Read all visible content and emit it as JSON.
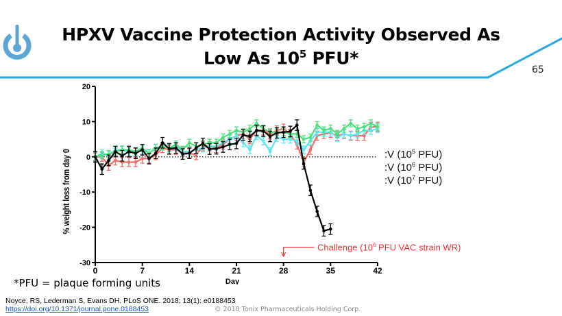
{
  "slide": {
    "title_line1": "HPXV Vaccine Protection Activity Observed As",
    "title_line2_pre": "Low As 10",
    "title_line2_sup": "5",
    "title_line2_post": " PFU*",
    "page_number": "65",
    "footnote": "*PFU = plaque forming units",
    "citation": "Noyce, RS, Lederman S, Evans DH. PLoS ONE. 2018; 13(1): e0188453",
    "doi_link": "https://doi.org/10.1371/journal.pone.0188453",
    "copyright": "© 2018 Tonix Pharmaceuticals Holding Corp.",
    "accent_color": "#29a8e0",
    "logo_color": "#5ba4d4"
  },
  "chart_data": {
    "type": "line",
    "xlabel": "Day",
    "ylabel": "% weight loss from day 0",
    "xlim": [
      0,
      42
    ],
    "ylim": [
      -30,
      20
    ],
    "xticks": [
      "0",
      "7",
      "14",
      "21",
      "28",
      "35",
      "42"
    ],
    "yticks": [
      "20",
      "10",
      "0",
      "-10",
      "-20",
      "-30"
    ],
    "reference_line": 0,
    "legend_visible": [
      {
        "pre": ":V (10",
        "sup": "5",
        "post": " PFU)"
      },
      {
        "pre": ":V (10",
        "sup": "6",
        "post": " PFU)"
      },
      {
        "pre": ":V (10",
        "sup": "7",
        "post": " PFU)"
      }
    ],
    "annotation": {
      "pre": "Challenge (10",
      "sup": "6",
      "post": " PFU VAC strain WR)",
      "day": 28,
      "color": "#f03030"
    },
    "series": [
      {
        "name": "red",
        "color": "#f06a6a",
        "err": 1.3,
        "values": [
          0,
          0,
          -2.5,
          -1,
          -1.5,
          -1.5,
          -1.5,
          -0.5,
          -0.5,
          0.5,
          2.5,
          2,
          2,
          1.5,
          1,
          0.5,
          3,
          3,
          2.5,
          3.5,
          5,
          6,
          6.5,
          5,
          7.5,
          7.5,
          6.5,
          7.5,
          8,
          6.5,
          3.5,
          -1.5,
          2,
          6,
          6.5,
          6.8,
          6,
          6.5,
          6,
          6,
          6,
          8.5,
          8.5
        ]
      },
      {
        "name": "cyan",
        "color": "#5ee6f0",
        "err": 1.1,
        "values": [
          0,
          1,
          0.5,
          2,
          2,
          1.5,
          1.5,
          2,
          1,
          2.5,
          3,
          2.5,
          3,
          1.5,
          1.5,
          2,
          2.5,
          3,
          3,
          4,
          5,
          6,
          4,
          2,
          6,
          4.5,
          1.5,
          5.5,
          5,
          5,
          4.5,
          2,
          4.5,
          7,
          7,
          7,
          5.5,
          6.5,
          6,
          6.5,
          7.5,
          7.5,
          8
        ]
      },
      {
        "name": "green",
        "color": "#4be07c",
        "err": 1.0,
        "values": [
          0,
          0.5,
          0.8,
          1.5,
          2,
          2,
          1.5,
          2.5,
          1,
          2.5,
          3,
          2.5,
          3.5,
          2,
          4,
          3,
          3.5,
          4,
          4,
          5.5,
          6.5,
          7.5,
          7,
          8,
          9.5,
          8,
          7,
          7,
          7,
          6.5,
          6.5,
          5,
          5.5,
          9,
          7.5,
          8,
          6.5,
          8,
          9.5,
          8,
          8.5,
          9.5,
          8.5
        ]
      },
      {
        "name": "black",
        "color": "#000000",
        "err": 1.5,
        "values": [
          0,
          -3.5,
          -1,
          1.5,
          0.3,
          1.5,
          1,
          2,
          -0.5,
          1,
          4,
          2.3,
          2.5,
          0.8,
          1,
          2.5,
          3.8,
          2.2,
          2.3,
          2.8,
          3.5,
          3.8,
          6.2,
          5.8,
          7.5,
          7.3,
          5.8,
          6.8,
          7,
          7.2,
          9,
          -2,
          -9.5,
          -15.5,
          -21,
          -20.5
        ]
      }
    ]
  }
}
